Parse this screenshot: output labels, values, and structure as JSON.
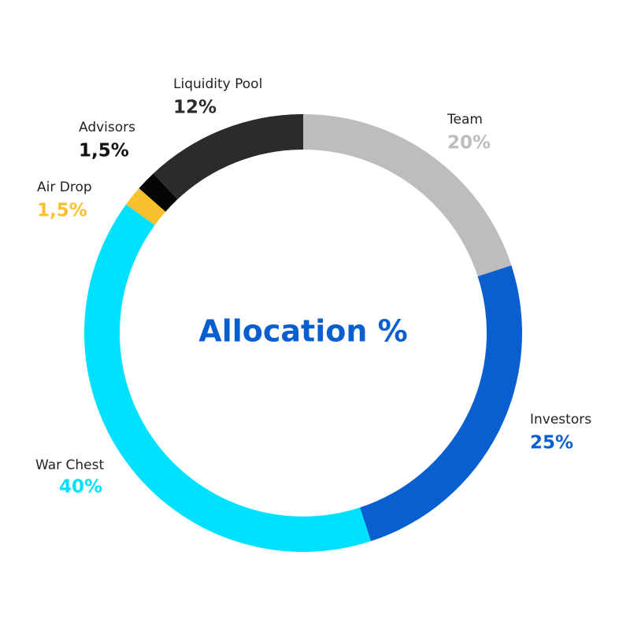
{
  "chart_data": {
    "type": "pie",
    "donut": true,
    "title": "Allocation %",
    "title_color": "#0a5fd0",
    "categories": [
      "Team",
      "Investors",
      "War Chest",
      "Air Drop",
      "Advisors",
      "Liquidity Pool"
    ],
    "values": [
      20,
      25,
      40,
      1.5,
      1.5,
      12
    ],
    "value_labels": [
      "20%",
      "25%",
      "40%",
      "1,5%",
      "1,5%",
      "12%"
    ],
    "colors": [
      "#bdbdbd",
      "#0a5fd0",
      "#00e1ff",
      "#fbc02d",
      "#050505",
      "#2b2b2b"
    ],
    "label_colors": [
      "#bdbdbd",
      "#0a5fd0",
      "#00e1ff",
      "#fbc02d",
      "#111111",
      "#2b2b2b"
    ]
  }
}
